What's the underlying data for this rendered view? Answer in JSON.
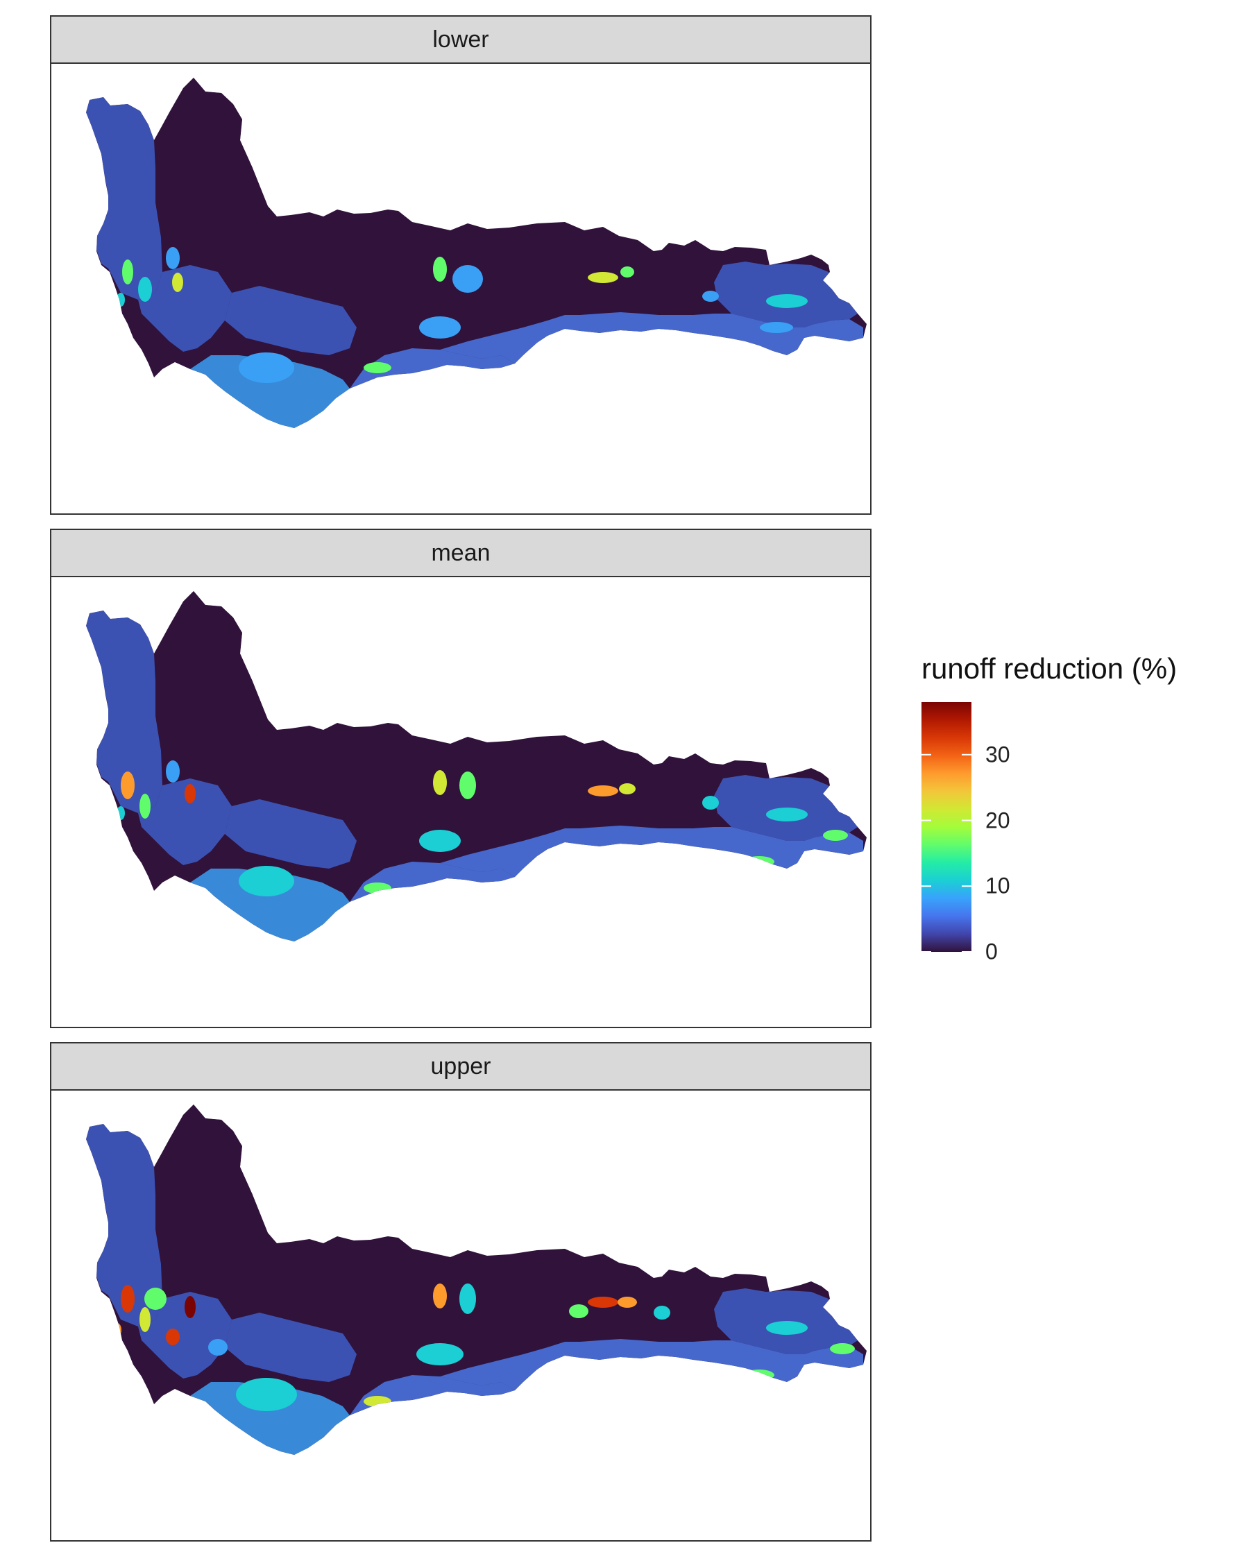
{
  "panels": [
    {
      "label": "lower",
      "variant": "lower"
    },
    {
      "label": "mean",
      "variant": "mean"
    },
    {
      "label": "upper",
      "variant": "upper"
    }
  ],
  "legend": {
    "title": "runoff reduction (%)",
    "ticks": [
      {
        "label": "30",
        "value": 30
      },
      {
        "label": "20",
        "value": 20
      },
      {
        "label": "10",
        "value": 10
      },
      {
        "label": "0",
        "value": 0
      }
    ],
    "range": [
      0,
      38
    ],
    "palette": [
      "#30123b",
      "#4145ab",
      "#4675ed",
      "#39a2fc",
      "#1bcfd4",
      "#24eca6",
      "#61fc6c",
      "#a4fc3b",
      "#d1e834",
      "#f3c63a",
      "#fe9b2d",
      "#f36315",
      "#d93806",
      "#b11901",
      "#7a0403"
    ]
  },
  "colors": {
    "background": "#30123b",
    "coastal_blue": "#3e5ec8",
    "mid_blue": "#4a78e8",
    "light_blue": "#3aa0f5",
    "cyan": "#1bcfd4",
    "green": "#61fc6c",
    "yellow": "#d1e834",
    "orange": "#fe9b2d",
    "red": "#d93806",
    "darkred": "#7a0403"
  }
}
